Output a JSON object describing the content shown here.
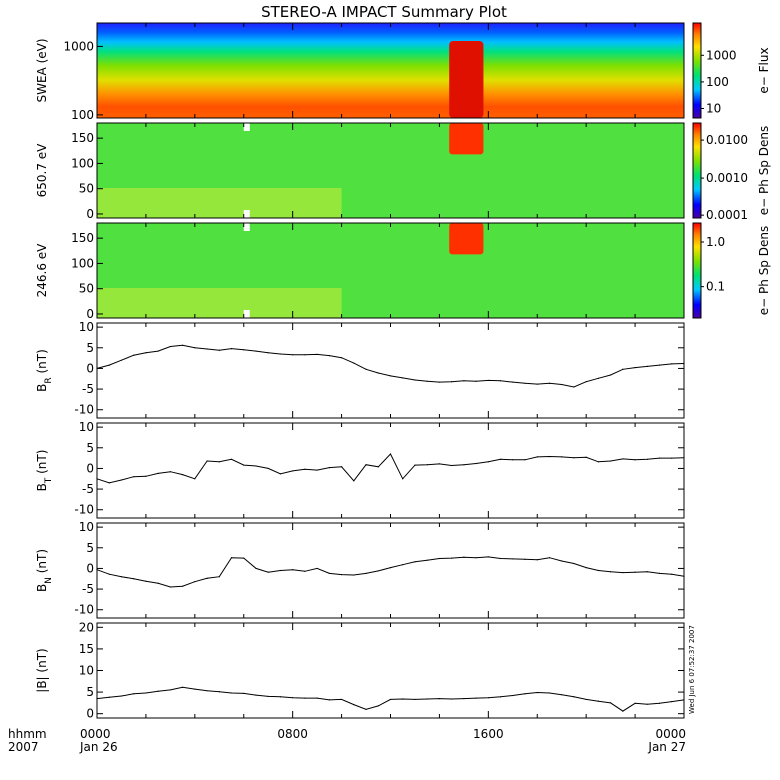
{
  "title": "STEREO-A IMPACT Summary Plot",
  "footer": {
    "hhmm": "hhmm",
    "year": "2007",
    "stamp": "Wed Jun  6 07:52:37 2007"
  },
  "time_ticks": [
    {
      "hour": 0,
      "line1": "0000",
      "line2": "Jan 26"
    },
    {
      "hour": 8,
      "line1": "0800",
      "line2": ""
    },
    {
      "hour": 16,
      "line1": "1600",
      "line2": ""
    },
    {
      "hour": 24,
      "line1": "0000",
      "line2": "Jan 27"
    }
  ],
  "spectrograms": [
    {
      "ylabel": "SWEA (eV)",
      "cbar_label": "e− Flux",
      "yscale": "log",
      "ylim": [
        90,
        2200
      ],
      "yticks": [
        "1000",
        "100"
      ],
      "ytick_values": [
        1000,
        100
      ],
      "cbar_ticks": [
        "1000",
        "100",
        "10"
      ],
      "cbar_tick_fracs": [
        0.66,
        0.38,
        0.1
      ]
    },
    {
      "ylabel": "650.7 eV",
      "cbar_label": "e− Ph Sp Dens",
      "yscale": "linear",
      "ylim": [
        -8,
        180
      ],
      "yticks": [
        "150",
        "100",
        "50",
        "0"
      ],
      "ytick_values": [
        150,
        100,
        50,
        0
      ],
      "cbar_ticks": [
        "0.0100",
        "0.0010",
        "0.0001"
      ],
      "cbar_tick_fracs": [
        0.82,
        0.42,
        0.03
      ]
    },
    {
      "ylabel": "246.6 eV",
      "cbar_label": "e− Ph Sp Dens",
      "yscale": "linear",
      "ylim": [
        -8,
        180
      ],
      "yticks": [
        "150",
        "100",
        "50",
        "0"
      ],
      "ytick_values": [
        150,
        100,
        50,
        0
      ],
      "cbar_ticks": [
        "1.0",
        "0.1"
      ],
      "cbar_tick_fracs": [
        0.8,
        0.33
      ]
    }
  ],
  "chart_data": [
    {
      "type": "line",
      "ylabel_main": "B",
      "ylabel_sub": "R",
      "ylabel_unit": " (nT)",
      "ylim": [
        -12,
        11
      ],
      "yticks": [
        "10",
        "5",
        "0",
        "-5",
        "-10"
      ],
      "ytick_values": [
        10,
        5,
        0,
        -5,
        -10
      ],
      "x_hours": [
        0,
        0.5,
        1,
        1.5,
        2,
        2.5,
        3,
        3.5,
        4,
        4.5,
        5,
        5.5,
        6,
        6.5,
        7,
        7.5,
        8,
        8.5,
        9,
        9.5,
        10,
        10.5,
        11,
        11.5,
        12,
        12.5,
        13,
        13.5,
        14,
        14.5,
        15,
        15.5,
        16,
        16.5,
        17,
        17.5,
        18,
        18.5,
        19,
        19.5,
        20,
        20.5,
        21,
        21.5,
        22,
        22.5,
        23,
        23.5,
        24
      ],
      "y": [
        0,
        0.8,
        2,
        3.2,
        3.8,
        4.2,
        5.3,
        5.6,
        5,
        4.7,
        4.4,
        4.8,
        4.5,
        4.2,
        3.8,
        3.5,
        3.3,
        3.3,
        3.4,
        3.1,
        2.6,
        1.3,
        -0.2,
        -1.1,
        -1.8,
        -2.3,
        -2.8,
        -3.1,
        -3.3,
        -3.2,
        -3.0,
        -3.1,
        -2.9,
        -3.0,
        -3.3,
        -3.6,
        -3.8,
        -3.6,
        -3.9,
        -4.5,
        -3.2,
        -2.4,
        -1.6,
        -0.2,
        0.2,
        0.5,
        0.8,
        1.1,
        1.2
      ]
    },
    {
      "type": "line",
      "ylabel_main": "B",
      "ylabel_sub": "T",
      "ylabel_unit": " (nT)",
      "ylim": [
        -12,
        11
      ],
      "yticks": [
        "10",
        "5",
        "0",
        "-5",
        "-10"
      ],
      "ytick_values": [
        10,
        5,
        0,
        -5,
        -10
      ],
      "x_hours": [
        0,
        0.5,
        1,
        1.5,
        2,
        2.5,
        3,
        3.5,
        4,
        4.5,
        5,
        5.5,
        6,
        6.5,
        7,
        7.5,
        8,
        8.5,
        9,
        9.5,
        10,
        10.5,
        11,
        11.5,
        12,
        12.5,
        13,
        13.5,
        14,
        14.5,
        15,
        15.5,
        16,
        16.5,
        17,
        17.5,
        18,
        18.5,
        19,
        19.5,
        20,
        20.5,
        21,
        21.5,
        22,
        22.5,
        23,
        23.5,
        24
      ],
      "y": [
        -2.5,
        -3.5,
        -2.8,
        -2,
        -1.9,
        -1.2,
        -0.8,
        -1.5,
        -2.5,
        1.8,
        1.6,
        2.2,
        0.8,
        0.6,
        0,
        -1.3,
        -0.6,
        -0.2,
        -0.4,
        0.2,
        0.4,
        -3,
        0.9,
        0.4,
        3.5,
        -2.5,
        0.8,
        0.9,
        1.1,
        0.7,
        0.9,
        1.2,
        1.6,
        2.2,
        2.1,
        2.1,
        2.8,
        2.9,
        2.8,
        2.6,
        2.7,
        1.6,
        1.8,
        2.3,
        2.1,
        2.2,
        2.5,
        2.5,
        2.6
      ]
    },
    {
      "type": "line",
      "ylabel_main": "B",
      "ylabel_sub": "N",
      "ylabel_unit": " (nT)",
      "ylim": [
        -12,
        11
      ],
      "yticks": [
        "10",
        "5",
        "0",
        "-5",
        "-10"
      ],
      "ytick_values": [
        10,
        5,
        0,
        -5,
        -10
      ],
      "x_hours": [
        0,
        0.5,
        1,
        1.5,
        2,
        2.5,
        3,
        3.5,
        4,
        4.5,
        5,
        5.5,
        6,
        6.5,
        7,
        7.5,
        8,
        8.5,
        9,
        9.5,
        10,
        10.5,
        11,
        11.5,
        12,
        12.5,
        13,
        13.5,
        14,
        14.5,
        15,
        15.5,
        16,
        16.5,
        17,
        17.5,
        18,
        18.5,
        19,
        19.5,
        20,
        20.5,
        21,
        21.5,
        22,
        22.5,
        23,
        23.5,
        24
      ],
      "y": [
        -0.3,
        -1.4,
        -2,
        -2.5,
        -3.1,
        -3.6,
        -4.5,
        -4.3,
        -3.2,
        -2.4,
        -2,
        2.6,
        2.5,
        0,
        -0.9,
        -0.5,
        -0.3,
        -0.7,
        0,
        -1.2,
        -1.5,
        -1.6,
        -1.2,
        -0.6,
        0.2,
        0.9,
        1.6,
        2.0,
        2.4,
        2.5,
        2.7,
        2.6,
        2.8,
        2.4,
        2.3,
        2.2,
        2.1,
        2.6,
        1.8,
        1.2,
        0.2,
        -0.5,
        -0.8,
        -1.0,
        -0.9,
        -0.8,
        -1.2,
        -1.4,
        -1.9
      ]
    },
    {
      "type": "line",
      "ylabel_main": "|B|",
      "ylabel_sub": "",
      "ylabel_unit": " (nT)",
      "ylim": [
        -1,
        21
      ],
      "yticks": [
        "20",
        "15",
        "10",
        "5",
        "0"
      ],
      "ytick_values": [
        20,
        15,
        10,
        5,
        0
      ],
      "x_hours": [
        0,
        0.5,
        1,
        1.5,
        2,
        2.5,
        3,
        3.5,
        4,
        4.5,
        5,
        5.5,
        6,
        6.5,
        7,
        7.5,
        8,
        8.5,
        9,
        9.5,
        10,
        10.5,
        11,
        11.5,
        12,
        12.5,
        13,
        13.5,
        14,
        14.5,
        15,
        15.5,
        16,
        16.5,
        17,
        17.5,
        18,
        18.5,
        19,
        19.5,
        20,
        20.5,
        21,
        21.5,
        22,
        22.5,
        23,
        23.5,
        24
      ],
      "y": [
        3.5,
        3.8,
        4.1,
        4.6,
        4.8,
        5.2,
        5.5,
        6.1,
        5.7,
        5.3,
        5.1,
        4.8,
        4.7,
        4.3,
        4.0,
        3.9,
        3.7,
        3.6,
        3.6,
        3.2,
        3.3,
        2.1,
        1.0,
        1.8,
        3.3,
        3.4,
        3.3,
        3.4,
        3.5,
        3.4,
        3.5,
        3.6,
        3.7,
        3.9,
        4.2,
        4.6,
        4.9,
        4.8,
        4.4,
        3.9,
        3.3,
        2.9,
        2.5,
        0.6,
        2.4,
        2.2,
        2.4,
        2.8,
        3.2
      ]
    }
  ]
}
